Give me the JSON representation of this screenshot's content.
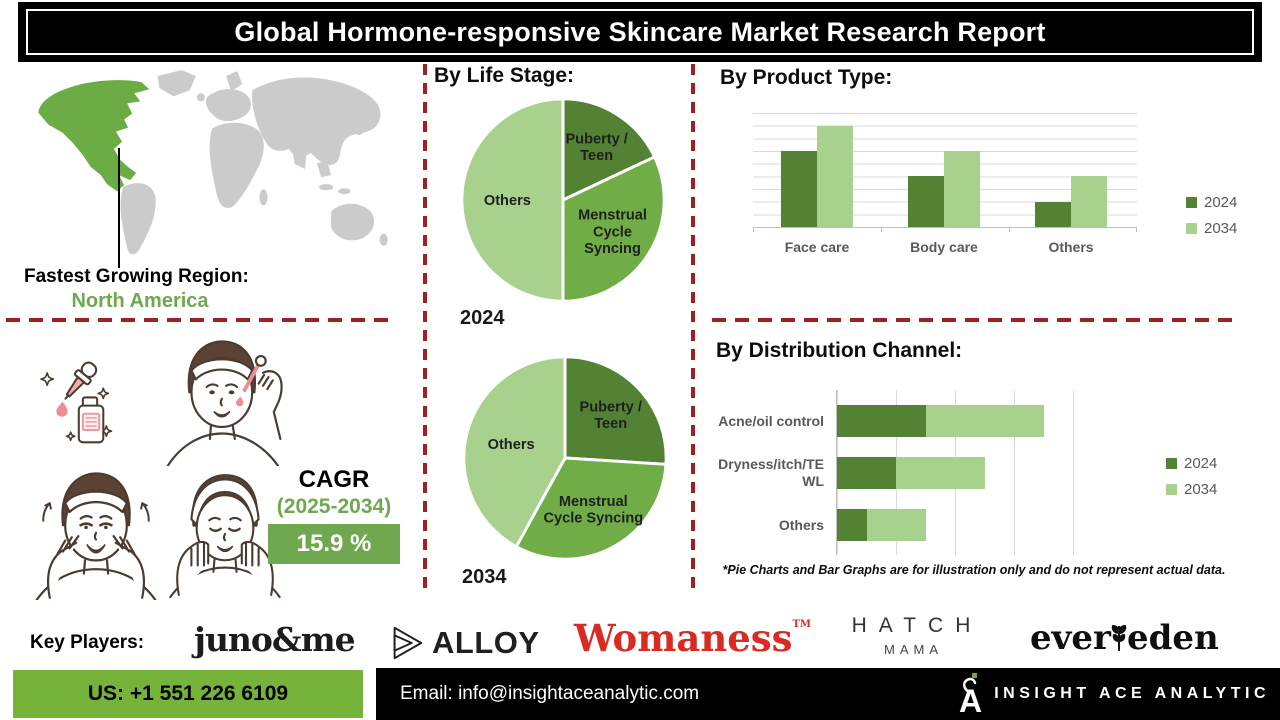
{
  "title": "Global Hormone-responsive Skincare Market Research Report",
  "region": {
    "label": "Fastest Growing Region:",
    "value": "North America"
  },
  "cagr": {
    "label": "CAGR",
    "period": "(2025-2034)",
    "value": "15.9 %"
  },
  "footnote": "*Pie Charts and Bar Graphs are for illustration only and do not represent actual data.",
  "key_players": {
    "label": "Key Players:",
    "brands": [
      {
        "name": "juno&me"
      },
      {
        "name": "ALLOY"
      },
      {
        "name": "Womaness",
        "mark": "TM"
      },
      {
        "name": "HATCH",
        "subname": "MAMA"
      },
      {
        "name": "evereden",
        "display_left": "ever",
        "display_right": "eden"
      }
    ]
  },
  "footer": {
    "phone": "US: +1 551 226 6109",
    "email": "Email: info@insightaceanalytic.com",
    "company": "INSIGHT ACE ANALYTIC"
  },
  "colors": {
    "green_dark": "#548235",
    "green_mid": "#70AD47",
    "green_light": "#A9D18E",
    "map_gray": "#cbcbcb",
    "map_green": "#6cac44",
    "dashed_red": "#9e2121",
    "brand_red": "#d92b23",
    "footer_green": "#76b33a"
  },
  "chart_data": [
    {
      "type": "pie",
      "group_title": "By Life Stage:",
      "year": "2024",
      "labels": [
        "Puberty / Teen",
        "Menstrual Cycle Syncing",
        "Others"
      ],
      "label_lines": [
        [
          "Puberty /",
          "Teen"
        ],
        [
          "Menstrual",
          "Cycle",
          "Syncing"
        ],
        [
          "Others"
        ]
      ],
      "values": [
        18,
        32,
        50
      ],
      "colors": [
        "#548235",
        "#70AD47",
        "#A9D18E"
      ],
      "note": "illustrative"
    },
    {
      "type": "pie",
      "group_title": "By Life Stage:",
      "year": "2034",
      "labels": [
        "Puberty / Teen",
        "Menstrual Cycle Syncing",
        "Others"
      ],
      "label_lines": [
        [
          "Puberty /",
          "Teen"
        ],
        [
          "Menstrual",
          "Cycle Syncing"
        ],
        [
          "Others"
        ]
      ],
      "values": [
        26,
        32,
        42
      ],
      "colors": [
        "#548235",
        "#70AD47",
        "#A9D18E"
      ],
      "note": "illustrative"
    },
    {
      "type": "bar",
      "title": "By Product Type:",
      "categories": [
        "Face care",
        "Body care",
        "Others"
      ],
      "series": [
        {
          "name": "2024",
          "values": [
            6,
            4,
            2
          ],
          "color": "#548235"
        },
        {
          "name": "2034",
          "values": [
            8,
            6,
            4
          ],
          "color": "#A9D18E"
        }
      ],
      "ylim": [
        0,
        9
      ],
      "grid": true,
      "legend_position": "right",
      "note": "illustrative"
    },
    {
      "type": "stacked-bar-horizontal",
      "title": "By Distribution Channel:",
      "categories": [
        "Acne/oil control",
        "Dryness/itch/TEWL",
        "Others"
      ],
      "category_lines": [
        [
          "Acne/oil control"
        ],
        [
          "Dryness/itch/TE",
          "WL"
        ],
        [
          "Others"
        ]
      ],
      "series": [
        {
          "name": "2024",
          "values": [
            1.5,
            1.0,
            0.5
          ],
          "color": "#548235"
        },
        {
          "name": "2034",
          "values": [
            2.0,
            1.5,
            1.0
          ],
          "color": "#A9D18E"
        }
      ],
      "xlim": [
        0,
        4.4
      ],
      "grid": true,
      "legend_position": "right",
      "note": "illustrative"
    }
  ]
}
